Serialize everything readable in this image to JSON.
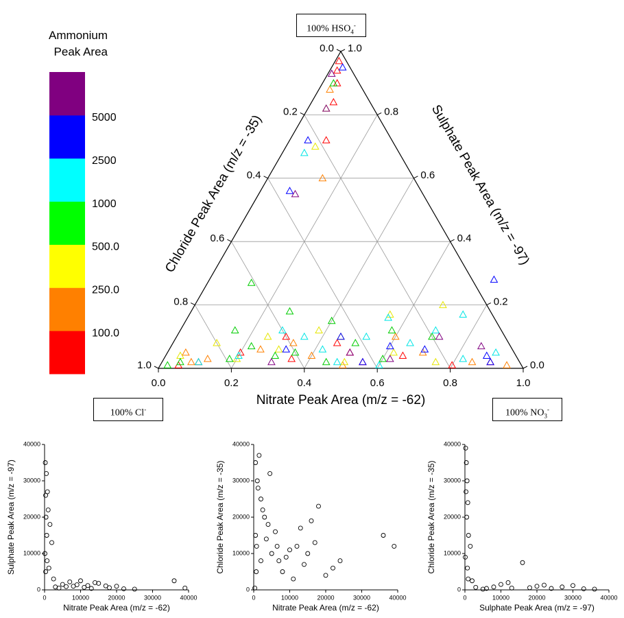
{
  "colorbar": {
    "title": "Ammonium Peak Area",
    "colors": [
      "#ff0000",
      "#ff8000",
      "#ffff00",
      "#00ff00",
      "#00ffff",
      "#0000ff",
      "#800080"
    ],
    "ticks": [
      {
        "value": 100,
        "label": "100.0"
      },
      {
        "value": 250,
        "label": "250.0"
      },
      {
        "value": 500,
        "label": "500.0"
      },
      1000,
      2500,
      5000
    ]
  },
  "corner_labels": {
    "top": {
      "text": "100% HSO",
      "sub": "4",
      "sup": "-"
    },
    "left": {
      "text": "100% Cl",
      "sup": "-"
    },
    "right": {
      "text": "100% NO",
      "sub": "3",
      "sup": "-"
    }
  },
  "chart_data": [
    {
      "type": "ternary",
      "x_label": "Nitrate Peak Area (m/z = -62)",
      "left_label": "Chloride Peak Area (m/z = -35)",
      "right_label": "Sulphate Peak Area (m/z = -97)",
      "xticks": [
        {
          "value": 0,
          "label": "0.0"
        },
        0.2,
        0.4,
        0.6,
        0.8,
        {
          "value": 1,
          "label": "1.0"
        }
      ],
      "leftticks": [
        {
          "value": 0,
          "label": "0.0"
        },
        0.2,
        0.4,
        0.6,
        0.8,
        {
          "value": 1,
          "label": "1.0"
        }
      ],
      "rightticks": [
        {
          "value": 0,
          "label": "0.0"
        },
        0.2,
        0.4,
        0.6,
        0.8,
        {
          "value": 1,
          "label": "1.0"
        }
      ],
      "grid": true,
      "series": [
        {
          "color": "#ff0000",
          "x": [
            0.01,
            0.04,
            0.06,
            0.1,
            0.02,
            0.1,
            0.2,
            0.35,
            0.45,
            0.55,
            0.65,
            0.8,
            0.05,
            0.3,
            0.5,
            0.9
          ],
          "y": [
            0.97,
            0.9,
            0.84,
            0.72,
            0.94,
            0.02,
            0.05,
            0.03,
            0.08,
            0.02,
            0.04,
            0.01,
            0.01,
            0.1,
            0.05,
            0.02
          ]
        },
        {
          "color": "#ff8000",
          "x": [
            0.03,
            0.15,
            0.08,
            0.25,
            0.4,
            0.6,
            0.85,
            0.7,
            0.12,
            0.5,
            0.33,
            0.95,
            0.05
          ],
          "y": [
            0.88,
            0.6,
            0.02,
            0.06,
            0.04,
            0.1,
            0.02,
            0.05,
            0.03,
            0.01,
            0.08,
            0.01,
            0.05
          ]
        },
        {
          "color": "#e6e600",
          "x": [
            0.05,
            0.08,
            0.2,
            0.3,
            0.45,
            0.55,
            0.62,
            0.75,
            0.12,
            0.38,
            0.5,
            0.68,
            0.25,
            0.04
          ],
          "y": [
            0.82,
            0.7,
            0.03,
            0.06,
            0.1,
            0.17,
            0.05,
            0.02,
            0.08,
            0.12,
            0.02,
            0.2,
            0.1,
            0.04
          ]
        },
        {
          "color": "#00cc00",
          "x": [
            0.03,
            0.12,
            0.22,
            0.3,
            0.4,
            0.5,
            0.6,
            0.7,
            0.05,
            0.15,
            0.27,
            0.35,
            0.45,
            0.58,
            0.02,
            0.18
          ],
          "y": [
            0.9,
            0.27,
            0.07,
            0.04,
            0.15,
            0.08,
            0.03,
            0.1,
            0.02,
            0.12,
            0.18,
            0.05,
            0.02,
            0.12,
            0.01,
            0.03
          ]
        },
        {
          "color": "#00e5e5",
          "x": [
            0.06,
            0.2,
            0.35,
            0.48,
            0.55,
            0.65,
            0.75,
            0.82,
            0.28,
            0.42,
            0.6,
            0.9,
            0.1,
            0.52,
            0.7
          ],
          "y": [
            0.68,
            0.04,
            0.1,
            0.02,
            0.16,
            0.08,
            0.17,
            0.03,
            0.12,
            0.06,
            0.01,
            0.05,
            0.02,
            0.1,
            0.12
          ]
        },
        {
          "color": "#0000ff",
          "x": [
            0.03,
            0.05,
            0.08,
            0.32,
            0.6,
            0.78,
            0.88,
            0.45,
            0.7,
            0.55,
            0.9
          ],
          "y": [
            0.95,
            0.72,
            0.56,
            0.06,
            0.07,
            0.28,
            0.04,
            0.1,
            0.06,
            0.02,
            0.02
          ]
        },
        {
          "color": "#800080",
          "x": [
            0.01,
            0.1,
            0.05,
            0.5,
            0.72,
            0.85,
            0.3,
            0.62
          ],
          "y": [
            0.93,
            0.55,
            0.82,
            0.05,
            0.1,
            0.07,
            0.02,
            0.03
          ]
        }
      ]
    },
    {
      "type": "scatter",
      "x_label": "Nitrate Peak Area (m/z = -62)",
      "y_label": "Sulphate Peak Area (m/z = -97)",
      "xlim": [
        0,
        40000
      ],
      "ylim": [
        0,
        40000
      ],
      "xticks": [
        0,
        10000,
        20000,
        30000,
        40000
      ],
      "yticks": [
        0,
        10000,
        20000,
        30000,
        40000
      ],
      "x": [
        200,
        500,
        800,
        300,
        1000,
        400,
        1500,
        600,
        2000,
        100,
        700,
        1200,
        300,
        3000,
        5000,
        8000,
        10000,
        12000,
        15000,
        18000,
        20000,
        22000,
        25000,
        6000,
        9000,
        14000,
        4000,
        11000,
        17000,
        36000,
        39000,
        2500,
        7000,
        13000
      ],
      "y": [
        35000,
        32000,
        27000,
        26000,
        22000,
        20000,
        18000,
        15000,
        13000,
        10000,
        8000,
        6000,
        5000,
        800,
        1500,
        1000,
        2500,
        1200,
        1800,
        600,
        1000,
        300,
        200,
        900,
        1400,
        2000,
        500,
        700,
        1100,
        2500,
        500,
        3000,
        2200,
        400
      ]
    },
    {
      "type": "scatter",
      "x_label": "Nitrate Peak Area (m/z = -62)",
      "y_label": "Chloride Peak Area (m/z = -35)",
      "xlim": [
        0,
        40000
      ],
      "ylim": [
        0,
        40000
      ],
      "xticks": [
        0,
        10000,
        20000,
        30000,
        40000
      ],
      "yticks": [
        0,
        10000,
        20000,
        30000,
        40000
      ],
      "x": [
        500,
        1000,
        1500,
        2000,
        3000,
        4000,
        500,
        800,
        2500,
        5000,
        6000,
        7000,
        8000,
        9000,
        10000,
        12000,
        14000,
        15000,
        17000,
        18000,
        20000,
        22000,
        24000,
        36000,
        39000,
        1200,
        3500,
        700,
        4500,
        11000,
        2000,
        300,
        6500,
        13000,
        16000
      ],
      "y": [
        35000,
        30000,
        37000,
        25000,
        20000,
        18000,
        15000,
        12000,
        22000,
        10000,
        16000,
        8000,
        5000,
        9000,
        11000,
        12000,
        7000,
        10000,
        13000,
        23000,
        4000,
        6000,
        8000,
        15000,
        12000,
        28000,
        14000,
        5000,
        32000,
        3000,
        8000,
        500,
        12000,
        17000,
        19000
      ]
    },
    {
      "type": "scatter",
      "x_label": "Sulphate Peak Area (m/z = -97)",
      "y_label": "Chloride Peak Area (m/z = -35)",
      "xlim": [
        0,
        40000
      ],
      "ylim": [
        0,
        40000
      ],
      "xticks": [
        0,
        10000,
        20000,
        30000,
        40000
      ],
      "yticks": [
        0,
        10000,
        20000,
        30000,
        40000
      ],
      "x": [
        200,
        400,
        600,
        300,
        800,
        500,
        1000,
        1500,
        100,
        700,
        900,
        5000,
        8000,
        10000,
        13000,
        16000,
        20000,
        24000,
        27000,
        30000,
        33000,
        36000,
        12000,
        18000,
        22000,
        6000,
        2000,
        3000
      ],
      "y": [
        39000,
        35000,
        30000,
        27000,
        24000,
        20000,
        15000,
        12000,
        9000,
        6000,
        3000,
        200,
        800,
        1500,
        500,
        7500,
        1000,
        400,
        800,
        1200,
        300,
        200,
        2000,
        600,
        1300,
        400,
        2500,
        700
      ]
    }
  ]
}
